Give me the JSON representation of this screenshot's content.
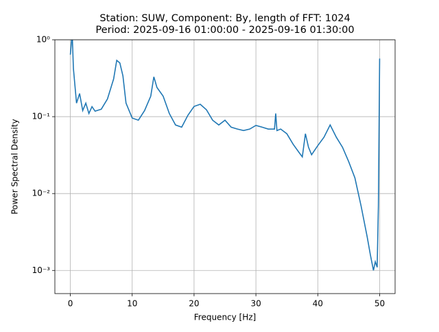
{
  "chart_data": {
    "type": "line",
    "title": "Station: SUW, Component: By, length of FFT: 1024",
    "subtitle": "Period: 2025-09-16 01:00:00 - 2025-09-16 01:30:00",
    "x_label": "Frequency [Hz]",
    "y_label": "Power Spectral Density",
    "x": [
      0,
      0.3,
      0.5,
      1,
      1.5,
      2,
      2.5,
      3,
      3.5,
      4,
      5,
      6,
      7,
      7.5,
      8,
      8.5,
      9,
      10,
      11,
      12,
      13,
      13.5,
      14,
      15,
      16,
      17,
      18,
      19,
      20,
      21,
      22,
      23,
      24,
      25,
      26,
      27,
      28,
      29,
      30,
      31,
      32,
      33,
      33.2,
      33.4,
      34,
      35,
      36,
      37,
      37.5,
      38,
      38.5,
      39,
      40,
      41,
      42,
      43,
      44,
      45,
      46,
      47,
      48,
      48.5,
      49,
      49.3,
      49.6,
      49.8,
      50
    ],
    "series": [
      {
        "name": "PSD",
        "color": "#1f77b4",
        "values": [
          0.64,
          1.2,
          0.42,
          0.15,
          0.2,
          0.12,
          0.15,
          0.11,
          0.135,
          0.118,
          0.125,
          0.17,
          0.31,
          0.54,
          0.5,
          0.34,
          0.15,
          0.096,
          0.09,
          0.12,
          0.185,
          0.33,
          0.24,
          0.185,
          0.11,
          0.078,
          0.073,
          0.104,
          0.136,
          0.145,
          0.123,
          0.09,
          0.078,
          0.09,
          0.073,
          0.069,
          0.066,
          0.069,
          0.077,
          0.073,
          0.069,
          0.069,
          0.11,
          0.066,
          0.069,
          0.06,
          0.044,
          0.034,
          0.03,
          0.06,
          0.04,
          0.032,
          0.042,
          0.054,
          0.078,
          0.054,
          0.04,
          0.026,
          0.016,
          0.0069,
          0.0027,
          0.0016,
          0.001,
          0.0013,
          0.0011,
          0.0069,
          0.57
        ]
      }
    ],
    "xlim": [
      -2.5,
      52.5
    ],
    "ylim": [
      0.0005,
      1
    ],
    "xticks": [
      0,
      10,
      20,
      30,
      40,
      50
    ],
    "yticks": [
      {
        "value": 0.001,
        "label": "10⁻³"
      },
      {
        "value": 0.01,
        "label": "10⁻²"
      },
      {
        "value": 0.1,
        "label": "10⁻¹"
      },
      {
        "value": 1,
        "label": "10⁰"
      }
    ],
    "y_scale": "log",
    "grid": true
  }
}
